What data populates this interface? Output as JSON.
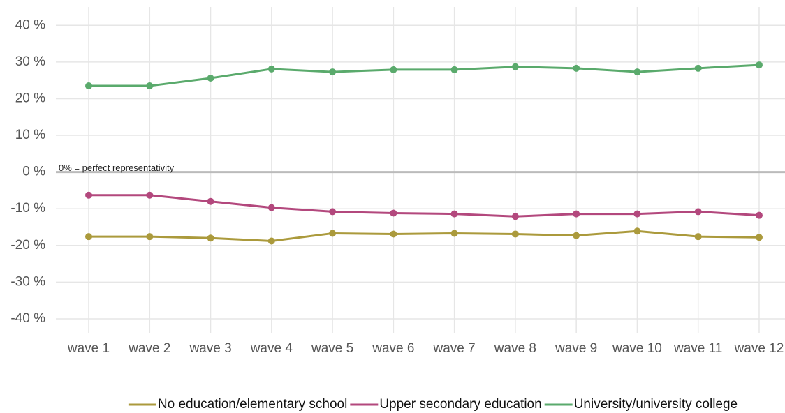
{
  "chart_data": {
    "type": "line",
    "categories": [
      "wave 1",
      "wave 2",
      "wave 3",
      "wave 4",
      "wave 5",
      "wave 6",
      "wave 7",
      "wave 8",
      "wave 9",
      "wave 10",
      "wave 11",
      "wave 12"
    ],
    "series": [
      {
        "name": "No education/elementary school",
        "color": "#ab9a3c",
        "values": [
          -17.6,
          -17.6,
          -18.0,
          -18.8,
          -16.7,
          -16.9,
          -16.7,
          -16.9,
          -17.3,
          -16.1,
          -17.6,
          -17.8
        ]
      },
      {
        "name": "Upper secondary education",
        "color": "#b3487d",
        "values": [
          -6.3,
          -6.3,
          -8.0,
          -9.7,
          -10.8,
          -11.2,
          -11.4,
          -12.1,
          -11.4,
          -11.4,
          -10.8,
          -11.8
        ]
      },
      {
        "name": "University/university college",
        "color": "#5aaa6c",
        "values": [
          23.5,
          23.5,
          25.6,
          28.1,
          27.3,
          27.9,
          27.9,
          28.7,
          28.3,
          27.3,
          28.3,
          29.2
        ]
      }
    ],
    "ylim": [
      -44,
      45
    ],
    "yticks": [
      {
        "value": -40,
        "label": "-40 %"
      },
      {
        "value": -30,
        "label": "-30 %"
      },
      {
        "value": -20,
        "label": "-20 %"
      },
      {
        "value": -10,
        "label": "-10 %"
      },
      {
        "value": 0,
        "label": "0 %"
      },
      {
        "value": 10,
        "label": "10 %"
      },
      {
        "value": 20,
        "label": "20 %"
      },
      {
        "value": 30,
        "label": "30 %"
      },
      {
        "value": 40,
        "label": "40 %"
      }
    ],
    "reference_line": {
      "value": 0,
      "label": "0% = perfect representativity"
    },
    "grid": true,
    "legend": "bottom"
  }
}
